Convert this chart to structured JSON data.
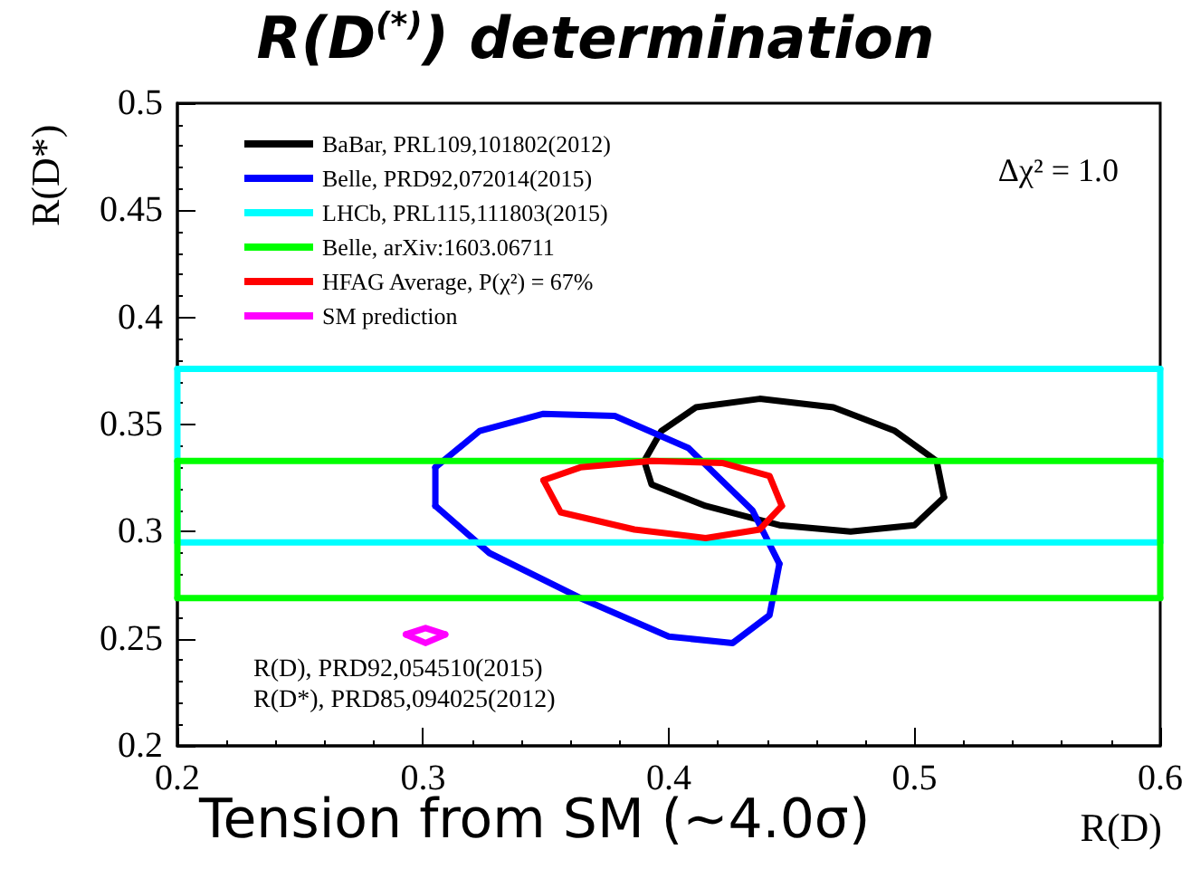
{
  "chart_data": {
    "type": "line",
    "title": "R(D$^{(*)}$) determination",
    "xlabel": "R(D)",
    "ylabel": "R(D*)",
    "annotations": [
      "Δχ² = 1.0",
      "R(D), PRD92,054510(2015)",
      "R(D*), PRD85,094025(2012)",
      "Tension from SM (~4.0σ)"
    ],
    "xlim": [
      0.2,
      0.6
    ],
    "xticks": [
      0.2,
      0.3,
      0.4,
      0.5,
      0.6
    ],
    "ylim": [
      0.2,
      0.5
    ],
    "yticks": [
      0.2,
      0.25,
      0.3,
      0.35,
      0.4,
      0.45,
      0.5
    ],
    "legend": "top left",
    "marker": "none",
    "line_style": "solid",
    "series": [
      {
        "name": "BaBar, PRL109,101802(2012)",
        "color": "#000000",
        "x": [
          0.39,
          0.397,
          0.411,
          0.437,
          0.467,
          0.492,
          0.509,
          0.512
        ],
        "values": [
          0.333,
          0.347,
          0.358,
          0.362,
          0.358,
          0.347,
          0.333,
          0.316
        ]
      },
      {
        "color": "#000000",
        "x": [
          0.39,
          0.393,
          0.415,
          0.445,
          0.474,
          0.5,
          0.512
        ],
        "values": [
          0.333,
          0.322,
          0.312,
          0.303,
          0.3,
          0.303,
          0.316
        ]
      },
      {
        "name": "Belle, PRD92,072014(2015)",
        "color": "#0000ff",
        "x": [
          0.305,
          0.323,
          0.349,
          0.378,
          0.408,
          0.434,
          0.445
        ],
        "values": [
          0.33,
          0.347,
          0.355,
          0.354,
          0.339,
          0.31,
          0.285
        ]
      },
      {
        "color": "#0000ff",
        "x": [
          0.305,
          0.327,
          0.364,
          0.4,
          0.426,
          0.441,
          0.445
        ],
        "values": [
          0.312,
          0.29,
          0.269,
          0.251,
          0.248,
          0.261,
          0.285
        ]
      },
      {
        "color": "#0000ff",
        "x": [
          0.305,
          0.305
        ],
        "values": [
          0.312,
          0.33
        ]
      },
      {
        "name": "LHCb, PRL115,111803(2015)",
        "color": "#00ffff",
        "x": [
          0.2,
          0.6
        ],
        "values": [
          0.376,
          0.376
        ]
      },
      {
        "color": "#00ffff",
        "x": [
          0.2,
          0.6
        ],
        "values": [
          0.295,
          0.295
        ]
      },
      {
        "color": "#00ffff",
        "x": [
          0.2,
          0.2
        ],
        "values": [
          0.295,
          0.376
        ]
      },
      {
        "color": "#00ffff",
        "x": [
          0.6,
          0.6
        ],
        "values": [
          0.295,
          0.376
        ]
      },
      {
        "name": "Belle, arXiv:1603.06711",
        "color": "#00ff00",
        "x": [
          0.2,
          0.6
        ],
        "values": [
          0.333,
          0.333
        ]
      },
      {
        "color": "#00ff00",
        "x": [
          0.2,
          0.6
        ],
        "values": [
          0.269,
          0.269
        ]
      },
      {
        "color": "#00ff00",
        "x": [
          0.2,
          0.2
        ],
        "values": [
          0.269,
          0.333
        ]
      },
      {
        "color": "#00ff00",
        "x": [
          0.6,
          0.6
        ],
        "values": [
          0.269,
          0.333
        ]
      },
      {
        "name": "HFAG Average, P(χ²) = 67%",
        "color": "#ff0000",
        "x": [
          0.349,
          0.364,
          0.393,
          0.422,
          0.441,
          0.446
        ],
        "values": [
          0.324,
          0.33,
          0.333,
          0.332,
          0.326,
          0.312
        ]
      },
      {
        "color": "#ff0000",
        "x": [
          0.349,
          0.356,
          0.386,
          0.415,
          0.437,
          0.446
        ],
        "values": [
          0.324,
          0.309,
          0.301,
          0.297,
          0.301,
          0.312
        ]
      },
      {
        "name": "SM prediction",
        "color": "#ff00ff",
        "x": [
          0.293,
          0.301,
          0.309
        ],
        "values": [
          0.252,
          0.255,
          0.252
        ]
      },
      {
        "color": "#ff00ff",
        "x": [
          0.293,
          0.301,
          0.309
        ],
        "values": [
          0.252,
          0.248,
          0.252
        ]
      }
    ]
  }
}
